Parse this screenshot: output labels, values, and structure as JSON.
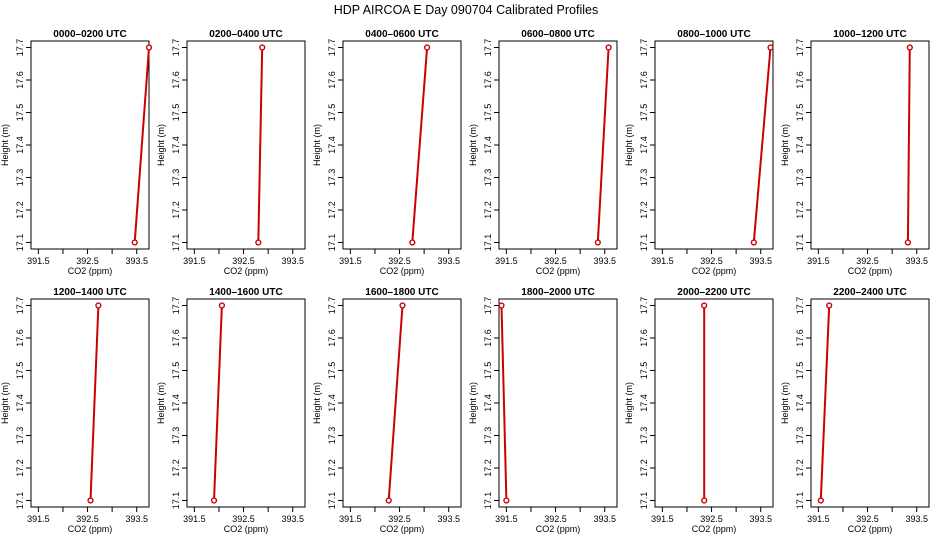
{
  "figure": {
    "title": "HDP AIRCOA E  Day 090704  Calibrated Profiles"
  },
  "chart_data": [
    {
      "type": "line",
      "title": "0000–0200 UTC",
      "xlabel": "CO2 (ppm)",
      "ylabel": "Height (m)",
      "xlim": [
        391.35,
        393.75
      ],
      "ylim": [
        17.08,
        17.72
      ],
      "xticks": [
        "391.5",
        "392.5",
        "393.5"
      ],
      "yticks": [
        "17.1",
        "17.2",
        "17.3",
        "17.4",
        "17.5",
        "17.6",
        "17.7"
      ],
      "series": [
        {
          "x": [
            393.46,
            393.75
          ],
          "y": [
            17.1,
            17.7
          ],
          "color": "#cc0000"
        }
      ]
    },
    {
      "type": "line",
      "title": "0200–0400 UTC",
      "xlabel": "CO2 (ppm)",
      "ylabel": "Height (m)",
      "xlim": [
        391.35,
        393.75
      ],
      "ylim": [
        17.08,
        17.72
      ],
      "xticks": [
        "391.5",
        "392.5",
        "393.5"
      ],
      "yticks": [
        "17.1",
        "17.2",
        "17.3",
        "17.4",
        "17.5",
        "17.6",
        "17.7"
      ],
      "series": [
        {
          "x": [
            392.8,
            392.88
          ],
          "y": [
            17.1,
            17.7
          ],
          "color": "#cc0000"
        }
      ]
    },
    {
      "type": "line",
      "title": "0400–0600 UTC",
      "xlabel": "CO2 (ppm)",
      "ylabel": "Height (m)",
      "xlim": [
        391.35,
        393.75
      ],
      "ylim": [
        17.08,
        17.72
      ],
      "xticks": [
        "391.5",
        "392.5",
        "393.5"
      ],
      "yticks": [
        "17.1",
        "17.2",
        "17.3",
        "17.4",
        "17.5",
        "17.6",
        "17.7"
      ],
      "series": [
        {
          "x": [
            392.76,
            393.06
          ],
          "y": [
            17.1,
            17.7
          ],
          "color": "#cc0000"
        }
      ]
    },
    {
      "type": "line",
      "title": "0600–0800 UTC",
      "xlabel": "CO2 (ppm)",
      "ylabel": "Height (m)",
      "xlim": [
        391.35,
        393.75
      ],
      "ylim": [
        17.08,
        17.72
      ],
      "xticks": [
        "391.5",
        "392.5",
        "393.5"
      ],
      "yticks": [
        "17.1",
        "17.2",
        "17.3",
        "17.4",
        "17.5",
        "17.6",
        "17.7"
      ],
      "series": [
        {
          "x": [
            393.36,
            393.58
          ],
          "y": [
            17.1,
            17.7
          ],
          "color": "#cc0000"
        }
      ]
    },
    {
      "type": "line",
      "title": "0800–1000 UTC",
      "xlabel": "CO2 (ppm)",
      "ylabel": "Height (m)",
      "xlim": [
        391.35,
        393.75
      ],
      "ylim": [
        17.08,
        17.72
      ],
      "xticks": [
        "391.5",
        "392.5",
        "393.5"
      ],
      "yticks": [
        "17.1",
        "17.2",
        "17.3",
        "17.4",
        "17.5",
        "17.6",
        "17.7"
      ],
      "series": [
        {
          "x": [
            393.36,
            393.7
          ],
          "y": [
            17.1,
            17.7
          ],
          "color": "#cc0000"
        }
      ]
    },
    {
      "type": "line",
      "title": "1000–1200 UTC",
      "xlabel": "CO2 (ppm)",
      "ylabel": "Height (m)",
      "xlim": [
        391.35,
        393.75
      ],
      "ylim": [
        17.08,
        17.72
      ],
      "xticks": [
        "391.5",
        "392.5",
        "393.5"
      ],
      "yticks": [
        "17.1",
        "17.2",
        "17.3",
        "17.4",
        "17.5",
        "17.6",
        "17.7"
      ],
      "series": [
        {
          "x": [
            393.32,
            393.36
          ],
          "y": [
            17.1,
            17.7
          ],
          "color": "#cc0000"
        }
      ]
    },
    {
      "type": "line",
      "title": "1200–1400 UTC",
      "xlabel": "CO2 (ppm)",
      "ylabel": "Height (m)",
      "xlim": [
        391.35,
        393.75
      ],
      "ylim": [
        17.08,
        17.72
      ],
      "xticks": [
        "391.5",
        "392.5",
        "393.5"
      ],
      "yticks": [
        "17.1",
        "17.2",
        "17.3",
        "17.4",
        "17.5",
        "17.6",
        "17.7"
      ],
      "series": [
        {
          "x": [
            392.56,
            392.72
          ],
          "y": [
            17.1,
            17.7
          ],
          "color": "#cc0000"
        }
      ]
    },
    {
      "type": "line",
      "title": "1400–1600 UTC",
      "xlabel": "CO2 (ppm)",
      "ylabel": "Height (m)",
      "xlim": [
        391.35,
        393.75
      ],
      "ylim": [
        17.08,
        17.72
      ],
      "xticks": [
        "391.5",
        "392.5",
        "393.5"
      ],
      "yticks": [
        "17.1",
        "17.2",
        "17.3",
        "17.4",
        "17.5",
        "17.6",
        "17.7"
      ],
      "series": [
        {
          "x": [
            391.9,
            392.06
          ],
          "y": [
            17.1,
            17.7
          ],
          "color": "#cc0000"
        }
      ]
    },
    {
      "type": "line",
      "title": "1600–1800 UTC",
      "xlabel": "CO2 (ppm)",
      "ylabel": "Height (m)",
      "xlim": [
        391.35,
        393.75
      ],
      "ylim": [
        17.08,
        17.72
      ],
      "xticks": [
        "391.5",
        "392.5",
        "393.5"
      ],
      "yticks": [
        "17.1",
        "17.2",
        "17.3",
        "17.4",
        "17.5",
        "17.6",
        "17.7"
      ],
      "series": [
        {
          "x": [
            392.28,
            392.56
          ],
          "y": [
            17.1,
            17.7
          ],
          "color": "#cc0000"
        }
      ]
    },
    {
      "type": "line",
      "title": "1800–2000 UTC",
      "xlabel": "CO2 (ppm)",
      "ylabel": "Height (m)",
      "xlim": [
        391.35,
        393.75
      ],
      "ylim": [
        17.08,
        17.72
      ],
      "xticks": [
        "391.5",
        "392.5",
        "393.5"
      ],
      "yticks": [
        "17.1",
        "17.2",
        "17.3",
        "17.4",
        "17.5",
        "17.6",
        "17.7"
      ],
      "series": [
        {
          "x": [
            391.5,
            391.4
          ],
          "y": [
            17.1,
            17.7
          ],
          "color": "#cc0000"
        }
      ]
    },
    {
      "type": "line",
      "title": "2000–2200 UTC",
      "xlabel": "CO2 (ppm)",
      "ylabel": "Height (m)",
      "xlim": [
        391.35,
        393.75
      ],
      "ylim": [
        17.08,
        17.72
      ],
      "xticks": [
        "391.5",
        "392.5",
        "393.5"
      ],
      "yticks": [
        "17.1",
        "17.2",
        "17.3",
        "17.4",
        "17.5",
        "17.6",
        "17.7"
      ],
      "series": [
        {
          "x": [
            392.35,
            392.35
          ],
          "y": [
            17.1,
            17.7
          ],
          "color": "#cc0000"
        }
      ]
    },
    {
      "type": "line",
      "title": "2200–2400 UTC",
      "xlabel": "CO2 (ppm)",
      "ylabel": "Height (m)",
      "xlim": [
        391.35,
        393.75
      ],
      "ylim": [
        17.08,
        17.72
      ],
      "xticks": [
        "391.5",
        "392.5",
        "393.5"
      ],
      "yticks": [
        "17.1",
        "17.2",
        "17.3",
        "17.4",
        "17.5",
        "17.6",
        "17.7"
      ],
      "series": [
        {
          "x": [
            391.55,
            391.72
          ],
          "y": [
            17.1,
            17.7
          ],
          "color": "#cc0000"
        }
      ]
    }
  ]
}
